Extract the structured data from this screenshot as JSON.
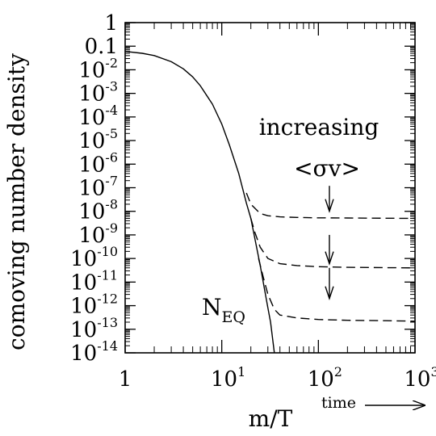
{
  "chart_data": {
    "type": "line",
    "xscale": "log",
    "yscale": "log",
    "xlim": [
      1,
      1000
    ],
    "ylim": [
      1e-14,
      1
    ],
    "xlabel": "m/T",
    "ylabel": "comoving number density",
    "grid": false,
    "x_ticks": [
      {
        "base": "1",
        "exp": ""
      },
      {
        "base": "10",
        "exp": "1"
      },
      {
        "base": "10",
        "exp": "2"
      },
      {
        "base": "10",
        "exp": "3"
      }
    ],
    "y_ticks": [
      {
        "base": "1",
        "exp": ""
      },
      {
        "base": "0.1",
        "exp": ""
      },
      {
        "base": "10",
        "exp": "-2"
      },
      {
        "base": "10",
        "exp": "-3"
      },
      {
        "base": "10",
        "exp": "-4"
      },
      {
        "base": "10",
        "exp": "-5"
      },
      {
        "base": "10",
        "exp": "-6"
      },
      {
        "base": "10",
        "exp": "-7"
      },
      {
        "base": "10",
        "exp": "-8"
      },
      {
        "base": "10",
        "exp": "-9"
      },
      {
        "base": "10",
        "exp": "-10"
      },
      {
        "base": "10",
        "exp": "-11"
      },
      {
        "base": "10",
        "exp": "-12"
      },
      {
        "base": "10",
        "exp": "-13"
      },
      {
        "base": "10",
        "exp": "-14"
      }
    ],
    "series": [
      {
        "style": "solid",
        "x": [
          1,
          1.5,
          2,
          3,
          4,
          5,
          6,
          8,
          10,
          12,
          15,
          18,
          20,
          25,
          30,
          32,
          35
        ],
        "y": [
          0.06,
          0.05,
          0.04,
          0.022,
          0.011,
          0.005,
          0.0021,
          0.00035,
          5e-05,
          6.5e-06,
          4e-07,
          2.2e-08,
          5e-09,
          5e-11,
          8e-13,
          2e-13,
          1e-14
        ]
      },
      {
        "style": "dashed",
        "x": [
          18,
          20,
          25,
          30,
          40,
          60,
          100,
          200,
          500,
          1000
        ],
        "y": [
          6e-08,
          2e-08,
          8e-09,
          6.5e-09,
          5.8e-09,
          5.5e-09,
          5.3e-09,
          5.2e-09,
          5.1e-09,
          5e-09
        ]
      },
      {
        "style": "dashed",
        "x": [
          20,
          22,
          25,
          30,
          40,
          60,
          100,
          200,
          500,
          1000
        ],
        "y": [
          5e-09,
          1.3e-09,
          3e-10,
          1e-10,
          6e-11,
          5e-11,
          4.5e-11,
          4.2e-11,
          4.1e-11,
          4e-11
        ]
      },
      {
        "style": "dashed",
        "x": [
          24,
          27,
          30,
          35,
          40,
          60,
          100,
          200,
          500,
          1000
        ],
        "y": [
          1e-10,
          1.5e-11,
          3e-12,
          7e-13,
          4e-13,
          3e-13,
          2.6e-13,
          2.4e-13,
          2.3e-13,
          2.2e-13
        ]
      }
    ],
    "arrows": [
      {
        "x": 130,
        "y_from": 1.2e-07,
        "y_to": 1e-08
      },
      {
        "x": 130,
        "y_from": 1e-09,
        "y_to": 6e-11
      },
      {
        "x": 130,
        "y_from": 4e-11,
        "y_to": 2e-12
      }
    ],
    "annotations": {
      "increasing": "increasing",
      "sigma_v": "<σv>",
      "neq_main": "N",
      "neq_sub": "EQ",
      "time": "time"
    }
  }
}
